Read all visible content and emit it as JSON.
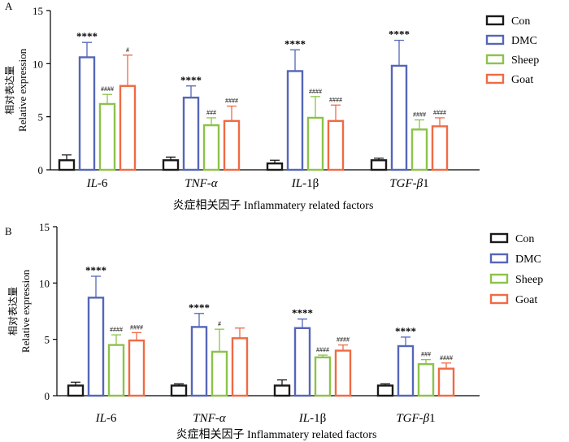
{
  "colors": {
    "Con": "#1a1a1a",
    "DMC": "#5566b8",
    "Sheep": "#8cc34a",
    "Goat": "#f06a44"
  },
  "chart_data": [
    {
      "type": "bar",
      "panel_label": "A",
      "title": "",
      "ylabel_cn": "相对表达量",
      "ylabel_en": "Relative expression",
      "xlabel": "炎症相关因子 Inflammatery related factors",
      "ylim": [
        0,
        15
      ],
      "yticks": [
        "0",
        "5",
        "10",
        "15"
      ],
      "categories": [
        {
          "pre": "IL",
          "suf": "-6"
        },
        {
          "pre": "TNF-α",
          "suf": ""
        },
        {
          "pre": "IL",
          "suf": "-1β"
        },
        {
          "pre": "TGF-β",
          "suf": "1"
        }
      ],
      "legend": {
        "position": "top-right",
        "entries": [
          "Con",
          "DMC",
          "Sheep",
          "Goat"
        ]
      },
      "series": [
        {
          "name": "Con",
          "values": [
            0.9,
            0.9,
            0.6,
            0.9
          ],
          "errors": [
            0.5,
            0.3,
            0.3,
            0.2
          ],
          "labels": [
            "",
            "",
            "",
            ""
          ]
        },
        {
          "name": "DMC",
          "values": [
            10.6,
            6.8,
            9.3,
            9.8
          ],
          "errors": [
            1.4,
            1.1,
            2.0,
            2.4
          ],
          "labels": [
            "****",
            "****",
            "****",
            "****"
          ]
        },
        {
          "name": "Sheep",
          "values": [
            6.2,
            4.2,
            4.9,
            3.8
          ],
          "errors": [
            0.9,
            0.7,
            2.0,
            0.9
          ],
          "labels": [
            "####",
            "###",
            "####",
            "####"
          ]
        },
        {
          "name": "Goat",
          "values": [
            7.9,
            4.6,
            4.6,
            4.1
          ],
          "errors": [
            2.9,
            1.4,
            1.5,
            0.8
          ],
          "labels": [
            "#",
            "####",
            "####",
            "####"
          ]
        }
      ]
    },
    {
      "type": "bar",
      "panel_label": "B",
      "title": "",
      "ylabel_cn": "相对表达量",
      "ylabel_en": "Relative expression",
      "xlabel": "炎症相关因子 Inflammatery related factors",
      "ylim": [
        0,
        15
      ],
      "yticks": [
        "0",
        "5",
        "10",
        "15"
      ],
      "categories": [
        {
          "pre": "IL",
          "suf": "-6"
        },
        {
          "pre": "TNF-α",
          "suf": ""
        },
        {
          "pre": "IL",
          "suf": "-1β"
        },
        {
          "pre": "TGF-β",
          "suf": "1"
        }
      ],
      "legend": {
        "position": "top-right",
        "entries": [
          "Con",
          "DMC",
          "Sheep",
          "Goat"
        ]
      },
      "series": [
        {
          "name": "Con",
          "values": [
            0.9,
            0.9,
            0.9,
            0.9
          ],
          "errors": [
            0.3,
            0.15,
            0.5,
            0.15
          ],
          "labels": [
            "",
            "",
            "",
            ""
          ]
        },
        {
          "name": "DMC",
          "values": [
            8.7,
            6.1,
            6.0,
            4.4
          ],
          "errors": [
            1.9,
            1.2,
            0.8,
            0.8
          ],
          "labels": [
            "****",
            "****",
            "****",
            "****"
          ]
        },
        {
          "name": "Sheep",
          "values": [
            4.5,
            3.9,
            3.4,
            2.8
          ],
          "errors": [
            0.9,
            2.0,
            0.2,
            0.4
          ],
          "labels": [
            "####",
            "#",
            "####",
            "###"
          ]
        },
        {
          "name": "Goat",
          "values": [
            4.9,
            5.1,
            4.0,
            2.4
          ],
          "errors": [
            0.7,
            0.9,
            0.5,
            0.5
          ],
          "labels": [
            "####",
            "",
            "####",
            "####"
          ]
        }
      ]
    }
  ]
}
